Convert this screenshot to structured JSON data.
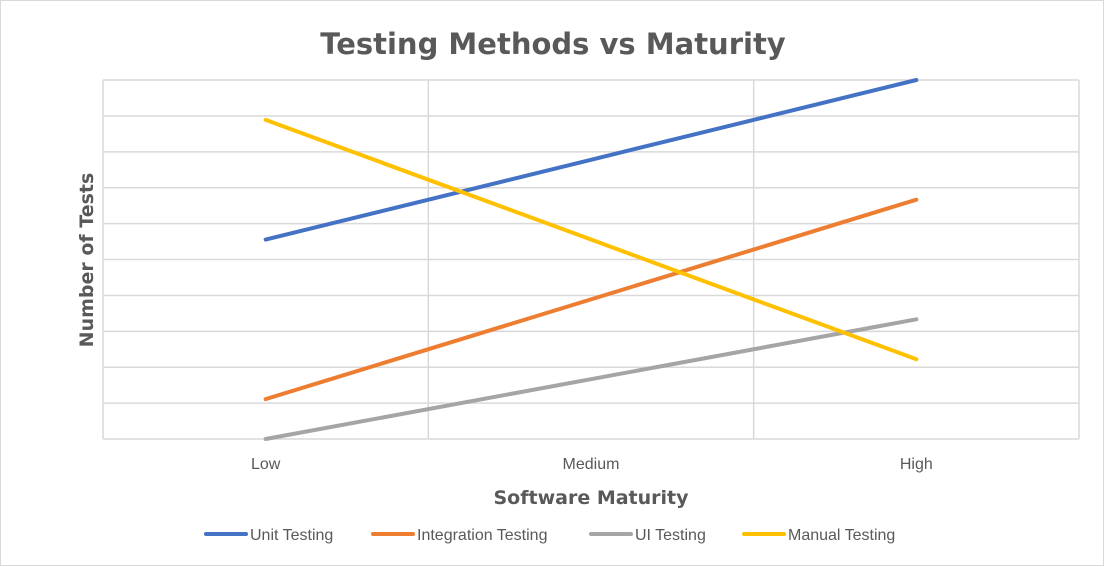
{
  "chart_data": {
    "type": "line",
    "title": "Testing Methods vs Maturity",
    "xlabel": "Software Maturity",
    "ylabel": "Number of Tests",
    "categories": [
      "Low",
      "Medium",
      "High"
    ],
    "ylim": [
      0,
      9
    ],
    "y_ticks_labeled": false,
    "grid": true,
    "legend_position": "bottom",
    "series": [
      {
        "name": "Unit Testing",
        "color": "#4472C4",
        "values": [
          5,
          7,
          9
        ]
      },
      {
        "name": "Integration Testing",
        "color": "#ED7D31",
        "values": [
          1,
          3.5,
          6
        ]
      },
      {
        "name": "UI Testing",
        "color": "#A5A5A5",
        "values": [
          0,
          1.5,
          3
        ]
      },
      {
        "name": "Manual Testing",
        "color": "#FFC000",
        "values": [
          8,
          5,
          2
        ]
      }
    ]
  }
}
